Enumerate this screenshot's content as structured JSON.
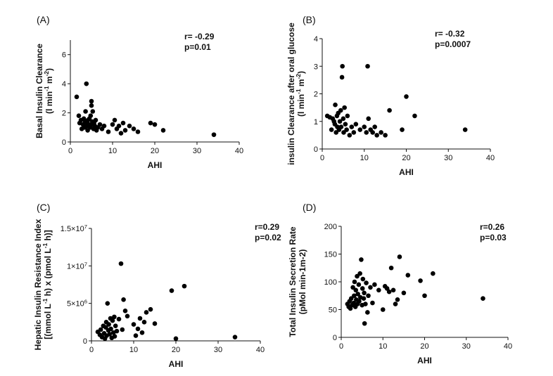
{
  "chart_data": [
    {
      "type": "scatter",
      "panel_label": "(A)",
      "xlabel": "AHI",
      "ylabel_lines": [
        "Basal Insulin Clearance",
        "(l min-1 m-2)"
      ],
      "ylabel_rich": [
        [
          {
            "t": "Basal Insulin Clearance"
          }
        ],
        [
          {
            "t": "(l min"
          },
          {
            "t": "-1",
            "sup": true
          },
          {
            "t": " m"
          },
          {
            "t": "-2",
            "sup": true
          },
          {
            "t": ")"
          }
        ]
      ],
      "stats": [
        "r= -0.29",
        "p=0.01"
      ],
      "xlim": [
        0,
        40
      ],
      "ylim": [
        0,
        7
      ],
      "x_ticks": [
        0,
        10,
        20,
        30,
        40
      ],
      "x_tick_labels": [
        "0",
        "10",
        "20",
        "30",
        "40"
      ],
      "y_ticks": [
        0,
        2,
        4,
        6
      ],
      "y_tick_labels": [
        "0",
        "2",
        "4",
        "6"
      ],
      "points": [
        [
          1.5,
          3.1
        ],
        [
          2,
          1.8
        ],
        [
          2.2,
          1.3
        ],
        [
          2.5,
          1.5
        ],
        [
          2.7,
          0.9
        ],
        [
          3,
          1.2
        ],
        [
          3.2,
          1.6
        ],
        [
          3.4,
          1.0
        ],
        [
          3.5,
          1.4
        ],
        [
          3.6,
          2.1
        ],
        [
          3.8,
          4.0
        ],
        [
          3.9,
          1.1
        ],
        [
          4,
          1.3
        ],
        [
          4.1,
          0.8
        ],
        [
          4.2,
          1.5
        ],
        [
          4.4,
          1.2
        ],
        [
          4.5,
          1.6
        ],
        [
          4.7,
          1.0
        ],
        [
          4.8,
          1.8
        ],
        [
          5,
          2.8
        ],
        [
          5,
          2.5
        ],
        [
          5.1,
          1.2
        ],
        [
          5.2,
          1.4
        ],
        [
          5.3,
          2.1
        ],
        [
          5.5,
          0.9
        ],
        [
          5.6,
          1.3
        ],
        [
          5.8,
          1.1
        ],
        [
          6,
          1.5
        ],
        [
          6.2,
          0.8
        ],
        [
          6.5,
          1.0
        ],
        [
          7,
          1.2
        ],
        [
          7.5,
          0.9
        ],
        [
          8,
          1.1
        ],
        [
          9,
          0.7
        ],
        [
          10,
          1.2
        ],
        [
          10.5,
          1.5
        ],
        [
          11,
          0.9
        ],
        [
          11.5,
          1.1
        ],
        [
          12,
          0.6
        ],
        [
          12.5,
          1.3
        ],
        [
          13,
          0.8
        ],
        [
          14,
          1.1
        ],
        [
          15,
          0.9
        ],
        [
          16,
          0.7
        ],
        [
          19,
          1.3
        ],
        [
          20,
          1.2
        ],
        [
          22,
          0.8
        ],
        [
          34,
          0.5
        ]
      ]
    },
    {
      "type": "scatter",
      "panel_label": "(B)",
      "xlabel": "AHI",
      "ylabel_lines": [
        "insulin Clearance after oral glucose",
        "(l min-1 m-2)"
      ],
      "ylabel_rich": [
        [
          {
            "t": "insulin Clearance after oral glucose"
          }
        ],
        [
          {
            "t": "(l min"
          },
          {
            "t": "-1",
            "sup": true
          },
          {
            "t": " m"
          },
          {
            "t": "-2",
            "sup": true
          },
          {
            "t": ")"
          }
        ]
      ],
      "stats": [
        "r= -0.32",
        "p=0.0007"
      ],
      "xlim": [
        0,
        40
      ],
      "ylim": [
        0,
        4
      ],
      "x_ticks": [
        0,
        10,
        20,
        30,
        40
      ],
      "x_tick_labels": [
        "0",
        "10",
        "20",
        "30",
        "40"
      ],
      "y_ticks": [
        0,
        1,
        2,
        3,
        4
      ],
      "y_tick_labels": [
        "0",
        "1",
        "2",
        "3",
        "4"
      ],
      "points": [
        [
          1.2,
          1.2
        ],
        [
          1.8,
          1.15
        ],
        [
          2.2,
          0.7
        ],
        [
          2.5,
          1.1
        ],
        [
          2.8,
          1.0
        ],
        [
          3,
          0.9
        ],
        [
          3.1,
          1.6
        ],
        [
          3.3,
          0.6
        ],
        [
          3.5,
          1.2
        ],
        [
          3.6,
          0.8
        ],
        [
          3.8,
          1.3
        ],
        [
          4,
          0.7
        ],
        [
          4.2,
          1.0
        ],
        [
          4.4,
          1.4
        ],
        [
          4.5,
          0.8
        ],
        [
          4.7,
          2.6
        ],
        [
          4.8,
          3.0
        ],
        [
          5,
          1.1
        ],
        [
          5.1,
          0.6
        ],
        [
          5.3,
          1.5
        ],
        [
          5.5,
          0.9
        ],
        [
          5.8,
          0.7
        ],
        [
          6,
          1.2
        ],
        [
          6.5,
          0.5
        ],
        [
          7,
          0.8
        ],
        [
          7.5,
          0.6
        ],
        [
          8,
          0.9
        ],
        [
          9,
          0.7
        ],
        [
          10,
          0.8
        ],
        [
          10.5,
          0.6
        ],
        [
          10.8,
          3.0
        ],
        [
          11,
          1.1
        ],
        [
          11.5,
          0.7
        ],
        [
          12,
          0.6
        ],
        [
          12.5,
          0.8
        ],
        [
          13,
          0.5
        ],
        [
          14,
          0.6
        ],
        [
          15,
          0.5
        ],
        [
          16,
          1.4
        ],
        [
          19,
          0.7
        ],
        [
          20,
          1.9
        ],
        [
          22,
          1.2
        ],
        [
          34,
          0.7
        ]
      ]
    },
    {
      "type": "scatter",
      "panel_label": "(C)",
      "xlabel": "AHI",
      "ylabel_lines": [
        "Hepatic Insulin Resistance Index",
        "[(mmol L-1 h) x (pmol L-1 h)]"
      ],
      "ylabel_rich": [
        [
          {
            "t": "Hepatic Insulin Resistance Index"
          }
        ],
        [
          {
            "t": "[(mmol L"
          },
          {
            "t": "-1",
            "sup": true
          },
          {
            "t": " h) x (pmol L"
          },
          {
            "t": "-1",
            "sup": true
          },
          {
            "t": " h)]"
          }
        ]
      ],
      "stats": [
        "r=0.29",
        "p=0.02"
      ],
      "xlim": [
        0,
        40
      ],
      "ylim": [
        0,
        15000000
      ],
      "x_ticks": [
        0,
        10,
        20,
        30,
        40
      ],
      "x_tick_labels": [
        "0",
        "10",
        "20",
        "30",
        "40"
      ],
      "y_ticks": [
        0,
        5000000,
        10000000,
        15000000
      ],
      "y_tick_labels": [
        [
          {
            "t": "0"
          }
        ],
        [
          {
            "t": "5×10"
          },
          {
            "t": "6",
            "sup": true
          }
        ],
        [
          {
            "t": "1×10"
          },
          {
            "t": "7",
            "sup": true
          }
        ],
        [
          {
            "t": "1.5×10"
          },
          {
            "t": "7",
            "sup": true
          }
        ]
      ],
      "points": [
        [
          1.5,
          1200000
        ],
        [
          2,
          800000
        ],
        [
          2.2,
          1500000
        ],
        [
          2.5,
          500000
        ],
        [
          2.8,
          2000000
        ],
        [
          3,
          1000000
        ],
        [
          3.2,
          300000
        ],
        [
          3.4,
          1800000
        ],
        [
          3.5,
          2500000
        ],
        [
          3.6,
          700000
        ],
        [
          3.8,
          5000000
        ],
        [
          4,
          1400000
        ],
        [
          4.1,
          2200000
        ],
        [
          4.3,
          900000
        ],
        [
          4.5,
          3000000
        ],
        [
          4.6,
          1600000
        ],
        [
          4.8,
          400000
        ],
        [
          5,
          2700000
        ],
        [
          5.2,
          1100000
        ],
        [
          5.4,
          3200000
        ],
        [
          5.5,
          600000
        ],
        [
          5.7,
          2000000
        ],
        [
          6,
          1300000
        ],
        [
          6.5,
          2900000
        ],
        [
          7,
          10300000
        ],
        [
          7.3,
          1500000
        ],
        [
          7.6,
          5500000
        ],
        [
          8,
          4000000
        ],
        [
          8.5,
          3300000
        ],
        [
          10,
          2200000
        ],
        [
          10.5,
          700000
        ],
        [
          11,
          1600000
        ],
        [
          11.5,
          3000000
        ],
        [
          12,
          1100000
        ],
        [
          12.5,
          2500000
        ],
        [
          13,
          3800000
        ],
        [
          14,
          4200000
        ],
        [
          15,
          2300000
        ],
        [
          19,
          6700000
        ],
        [
          20,
          300000
        ],
        [
          22,
          7300000
        ],
        [
          34,
          500000
        ]
      ]
    },
    {
      "type": "scatter",
      "panel_label": "(D)",
      "xlabel": "AHI",
      "ylabel_lines": [
        "Total Insulin Secretion Rate",
        "(pMol min-1m-2)"
      ],
      "ylabel_rich": [
        [
          {
            "t": "Total Insulin Secretion Rate"
          }
        ],
        [
          {
            "t": "(pMol min-1m-2)"
          }
        ]
      ],
      "stats": [
        "r=0.26",
        "p=0.03"
      ],
      "xlim": [
        0,
        40
      ],
      "ylim": [
        0,
        200
      ],
      "x_ticks": [
        0,
        10,
        20,
        30,
        40
      ],
      "x_tick_labels": [
        "0",
        "10",
        "20",
        "30",
        "40"
      ],
      "y_ticks": [
        0,
        50,
        100,
        150,
        200
      ],
      "y_tick_labels": [
        "0",
        "50",
        "100",
        "150",
        "200"
      ],
      "points": [
        [
          1.5,
          60
        ],
        [
          1.8,
          55
        ],
        [
          2,
          65
        ],
        [
          2.2,
          52
        ],
        [
          2.4,
          70
        ],
        [
          2.6,
          58
        ],
        [
          2.8,
          90
        ],
        [
          3,
          62
        ],
        [
          3.1,
          75
        ],
        [
          3.2,
          100
        ],
        [
          3.4,
          55
        ],
        [
          3.5,
          85
        ],
        [
          3.6,
          68
        ],
        [
          3.8,
          110
        ],
        [
          3.9,
          60
        ],
        [
          4,
          78
        ],
        [
          4.2,
          95
        ],
        [
          4.3,
          65
        ],
        [
          4.5,
          115
        ],
        [
          4.6,
          72
        ],
        [
          4.8,
          140
        ],
        [
          5,
          58
        ],
        [
          5.1,
          88
        ],
        [
          5.2,
          105
        ],
        [
          5.4,
          70
        ],
        [
          5.5,
          80
        ],
        [
          5.6,
          25
        ],
        [
          5.8,
          60
        ],
        [
          6,
          98
        ],
        [
          6.3,
          45
        ],
        [
          6.5,
          75
        ],
        [
          7,
          90
        ],
        [
          7.5,
          62
        ],
        [
          8,
          95
        ],
        [
          9,
          85
        ],
        [
          10,
          50
        ],
        [
          10.5,
          92
        ],
        [
          11,
          88
        ],
        [
          11.5,
          82
        ],
        [
          12,
          125
        ],
        [
          12.5,
          85
        ],
        [
          13,
          60
        ],
        [
          13.5,
          68
        ],
        [
          14,
          145
        ],
        [
          15,
          80
        ],
        [
          16,
          112
        ],
        [
          19,
          102
        ],
        [
          20,
          75
        ],
        [
          22,
          115
        ],
        [
          34,
          70
        ]
      ]
    }
  ]
}
